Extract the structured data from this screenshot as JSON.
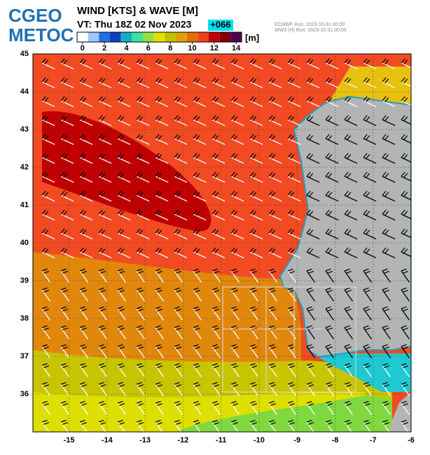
{
  "header": {
    "logo_top": "CGEO",
    "logo_bottom": "METOC",
    "title": "WIND [KTS] & WAVE [M]",
    "valid_time": "VT: Thu 18Z 02 Nov 2023",
    "lead": "+066",
    "source_1": "ECMWF   Run: 2023-10-31 00:00",
    "source_2": "WW3 (H) Run: 2023-10-31 00:00"
  },
  "colorbar": {
    "ticks": [
      0,
      2,
      4,
      6,
      8,
      10,
      12,
      14
    ],
    "unit": "[m]",
    "range": [
      -0.5,
      14.5
    ],
    "colors": [
      "#ffffff",
      "#9ec8ff",
      "#2070e0",
      "#1040c0",
      "#10b0c0",
      "#40e0a0",
      "#90e040",
      "#e0e000",
      "#c0c000",
      "#e0a000",
      "#e07000",
      "#f04020",
      "#c00000",
      "#800000",
      "#500050"
    ]
  },
  "map": {
    "xlim": [
      -15.95,
      -6
    ],
    "ylim": [
      35,
      45
    ],
    "lat_ticks": [
      45,
      44,
      43,
      42,
      41,
      40,
      39,
      38,
      37,
      36
    ],
    "lon_ticks": [
      -15,
      -14,
      -13,
      -12,
      -11,
      -10,
      -9,
      -8,
      -7,
      -6
    ]
  }
}
